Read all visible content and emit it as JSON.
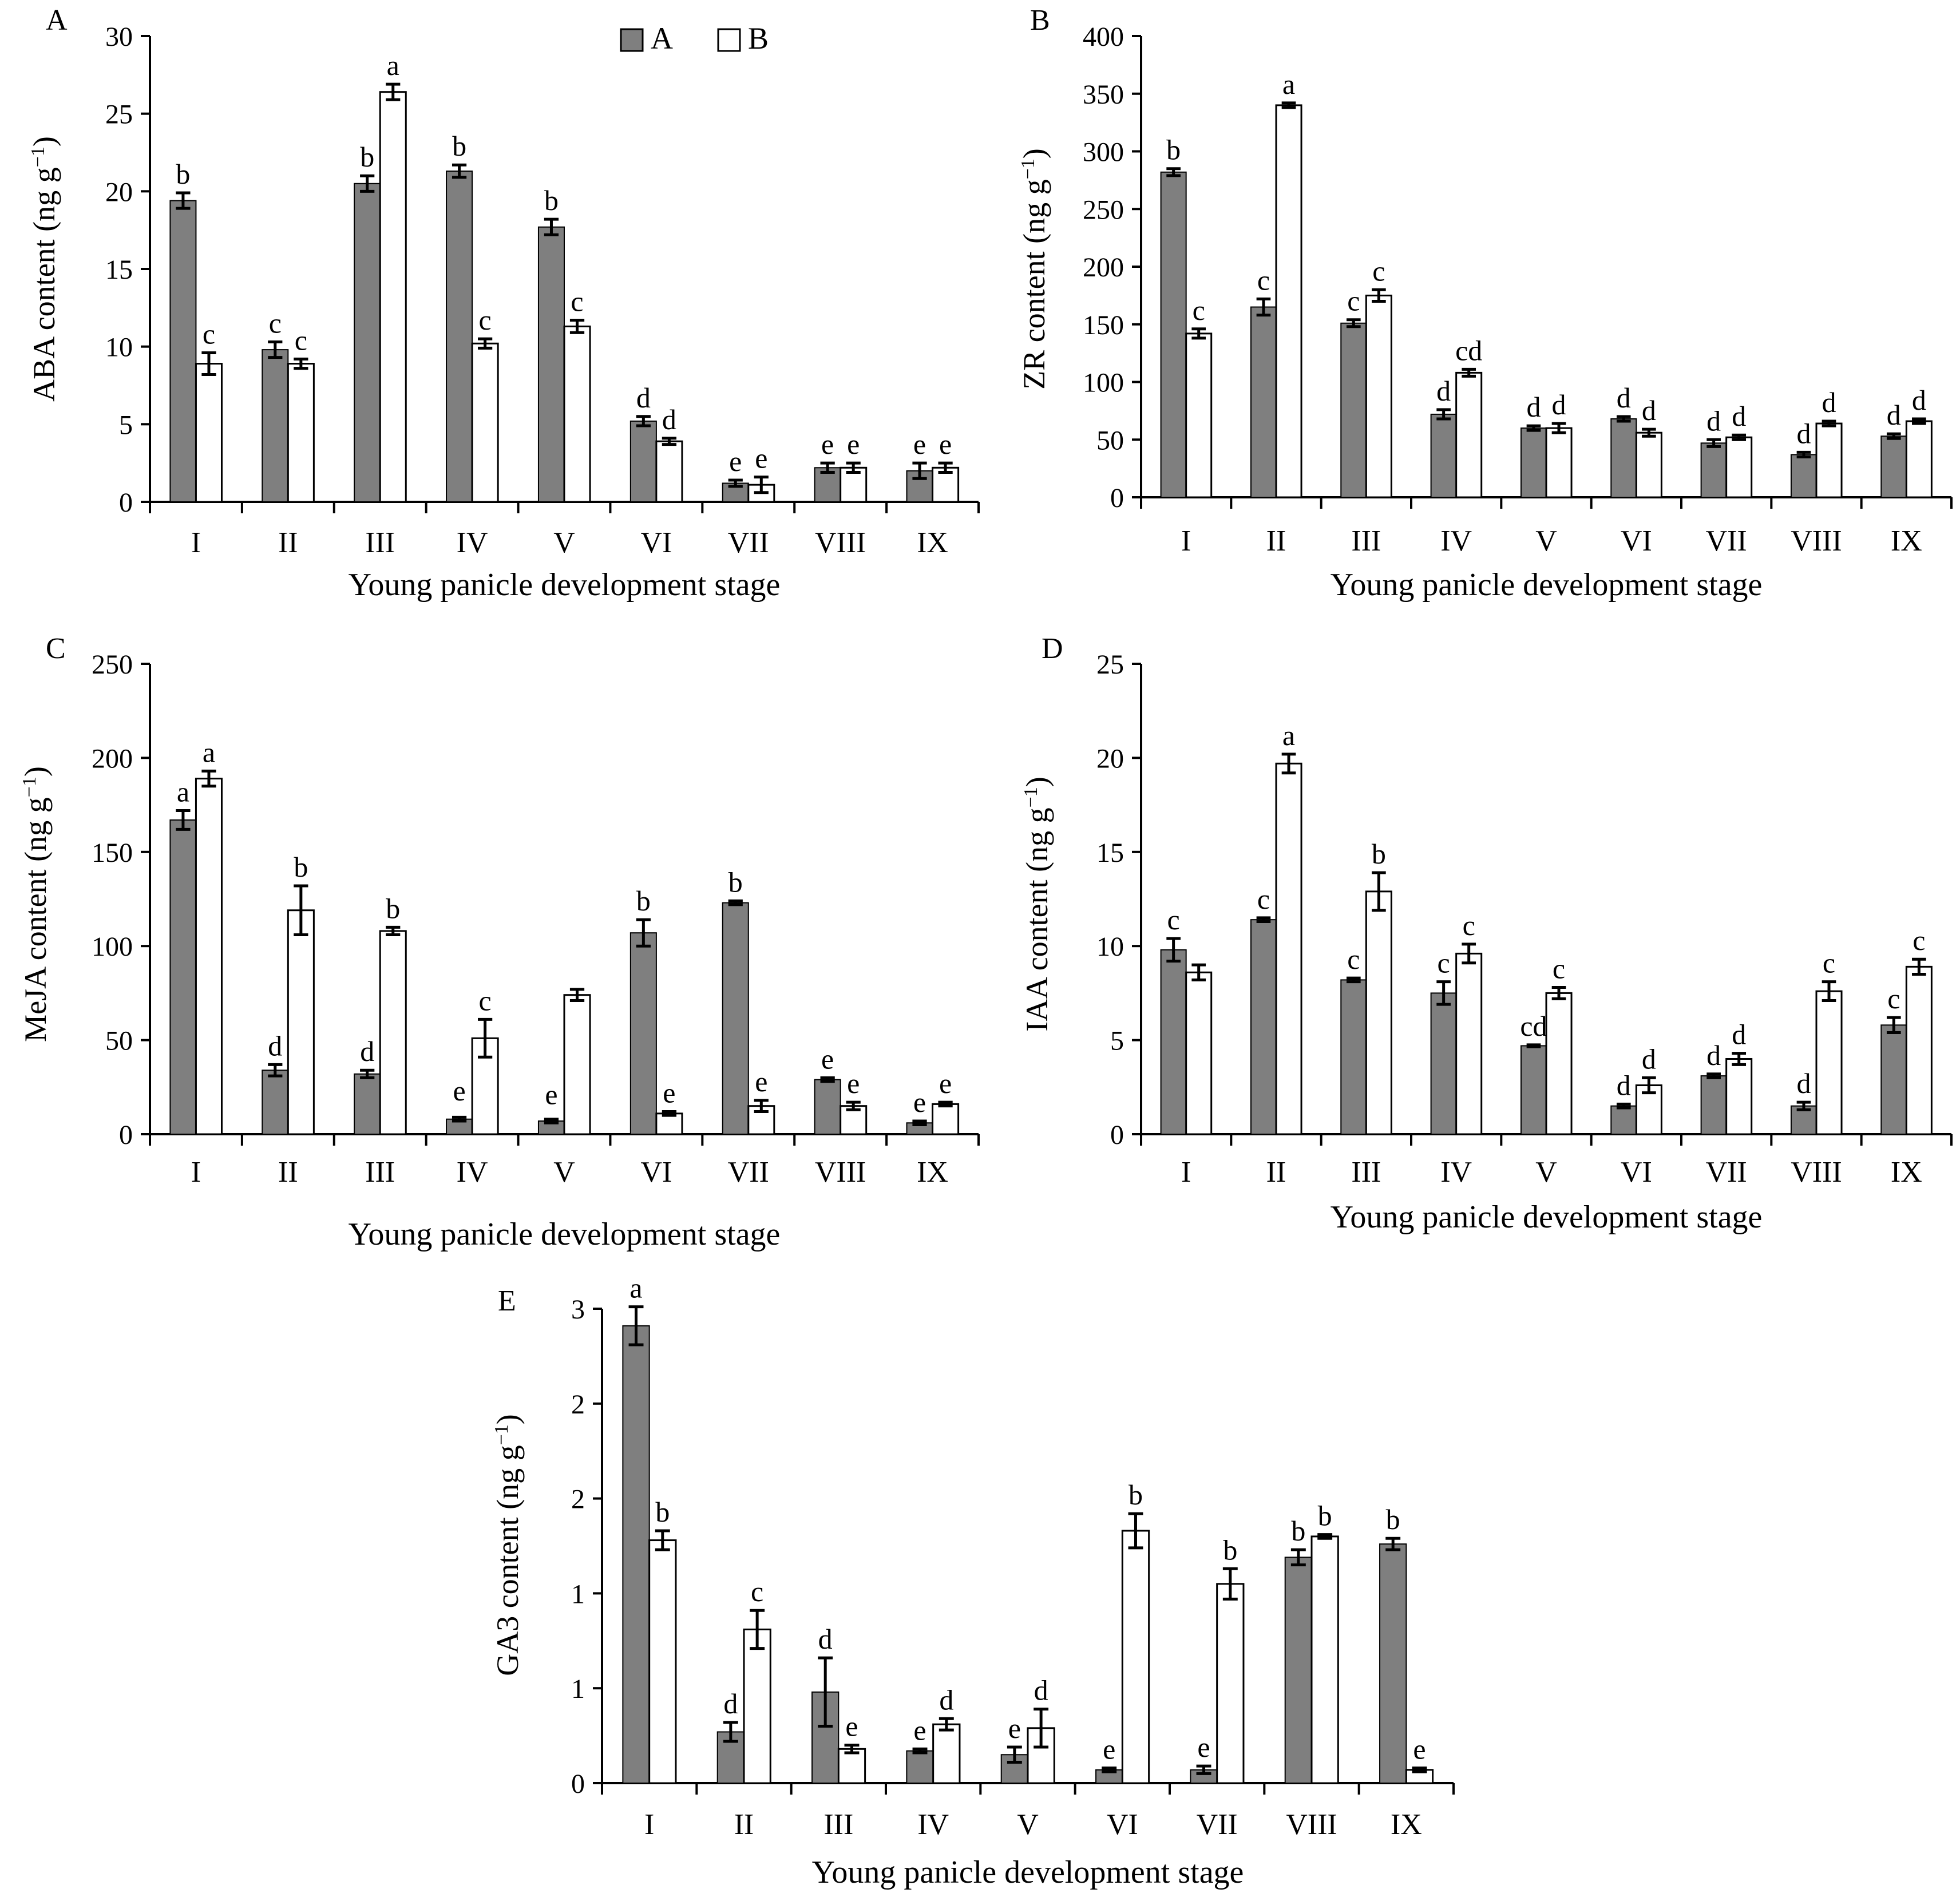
{
  "colors": {
    "series_A": "#7f7f7f",
    "series_B": "#ffffff",
    "stroke": "#000000"
  },
  "legend": {
    "position": "top",
    "entries": [
      {
        "label": "A",
        "color": "#7f7f7f"
      },
      {
        "label": "B",
        "color": "#ffffff"
      }
    ]
  },
  "chart_data": [
    {
      "type": "bar",
      "panel_label": "A",
      "xlabel": "Young panicle development stage",
      "ylabel_main": "ABA content (ng g",
      "ylabel_sup": "−1",
      "ylabel_close": ")",
      "ylim": [
        0,
        30
      ],
      "yticks": [
        "0",
        "5",
        "10",
        "15",
        "20",
        "25",
        "30"
      ],
      "categories": [
        "I",
        "II",
        "III",
        "IV",
        "V",
        "VI",
        "VII",
        "VIII",
        "IX"
      ],
      "series": [
        {
          "name": "A",
          "values": [
            19.4,
            9.8,
            20.5,
            21.3,
            17.7,
            5.2,
            1.2,
            2.2,
            2.0
          ],
          "errors": [
            0.5,
            0.5,
            0.5,
            0.4,
            0.5,
            0.3,
            0.2,
            0.3,
            0.5
          ],
          "letters": [
            "b",
            "c",
            "b",
            "b",
            "b",
            "d",
            "e",
            "e",
            "e"
          ]
        },
        {
          "name": "B",
          "values": [
            8.9,
            8.9,
            26.4,
            10.2,
            11.3,
            3.9,
            1.1,
            2.2,
            2.2
          ],
          "errors": [
            0.7,
            0.3,
            0.5,
            0.3,
            0.4,
            0.2,
            0.5,
            0.3,
            0.3
          ],
          "letters": [
            "c",
            "c",
            "a",
            "c",
            "c",
            "d",
            "e",
            "e",
            "e"
          ]
        }
      ]
    },
    {
      "type": "bar",
      "panel_label": "B",
      "xlabel": "Young panicle development stage",
      "ylabel_main": "ZR content (ng g",
      "ylabel_sup": "−1",
      "ylabel_close": ")",
      "ylim": [
        0,
        400
      ],
      "yticks": [
        "0",
        "50",
        "100",
        "150",
        "200",
        "250",
        "300",
        "350",
        "400"
      ],
      "categories": [
        "I",
        "II",
        "III",
        "IV",
        "V",
        "VI",
        "VII",
        "VIII",
        "IX"
      ],
      "series": [
        {
          "name": "A",
          "values": [
            282,
            165,
            151,
            72,
            60,
            68,
            47,
            37,
            53
          ],
          "errors": [
            3,
            7,
            3,
            4,
            2,
            2,
            3,
            2,
            2
          ],
          "letters": [
            "b",
            "c",
            "c",
            "d",
            "d",
            "d",
            "d",
            "d",
            "d"
          ]
        },
        {
          "name": "B",
          "values": [
            142,
            340,
            175,
            108,
            60,
            56,
            52,
            64,
            66
          ],
          "errors": [
            4,
            2,
            5,
            3,
            4,
            3,
            2,
            2,
            2
          ],
          "letters": [
            "c",
            "a",
            "c",
            "cd",
            "d",
            "d",
            "d",
            "d",
            "d"
          ]
        }
      ]
    },
    {
      "type": "bar",
      "panel_label": "C",
      "xlabel": "Young panicle development stage",
      "ylabel_main": "MeJA content (ng g",
      "ylabel_sup": "−1",
      "ylabel_close": ")",
      "ylim": [
        0,
        250
      ],
      "yticks": [
        "0",
        "50",
        "100",
        "150",
        "200",
        "250"
      ],
      "categories": [
        "I",
        "II",
        "III",
        "IV",
        "V",
        "VI",
        "VII",
        "VIII",
        "IX"
      ],
      "series": [
        {
          "name": "A",
          "values": [
            167,
            34,
            32,
            8,
            7,
            107,
            123,
            29,
            6
          ],
          "errors": [
            5,
            3,
            2,
            1,
            1,
            7,
            1,
            1,
            1
          ],
          "letters": [
            "a",
            "d",
            "d",
            "",
            "",
            "b",
            "b",
            "e",
            "e"
          ]
        },
        {
          "name": "B",
          "values": [
            189,
            119,
            108,
            51,
            74,
            11,
            15,
            15,
            16
          ],
          "errors": [
            4,
            13,
            2,
            10,
            3,
            1,
            3,
            2,
            1
          ],
          "letters": [
            "a",
            "b",
            "b",
            "c",
            "",
            "e",
            "e",
            "e",
            "e"
          ]
        }
      ],
      "extra_labels": [
        {
          "text": "e",
          "category": 3,
          "y": 18
        },
        {
          "text": "e",
          "category": 4,
          "y": 16
        }
      ]
    },
    {
      "type": "bar",
      "panel_label": "D",
      "xlabel": "Young panicle development stage",
      "ylabel_main": "IAA content (ng g",
      "ylabel_sup": "−1",
      "ylabel_close": ")",
      "ylim": [
        0,
        25
      ],
      "yticks": [
        "0",
        "5",
        "10",
        "15",
        "20",
        "25"
      ],
      "categories": [
        "I",
        "II",
        "III",
        "IV",
        "V",
        "VI",
        "VII",
        "VIII",
        "IX"
      ],
      "series": [
        {
          "name": "A",
          "values": [
            9.8,
            11.4,
            8.2,
            7.5,
            4.7,
            1.5,
            3.1,
            1.5,
            5.8
          ],
          "errors": [
            0.6,
            0.1,
            0.1,
            0.6,
            0.05,
            0.1,
            0.1,
            0.2,
            0.4
          ],
          "letters": [
            "c",
            "c",
            "c",
            "c",
            "cd",
            "d",
            "d",
            "d",
            "c"
          ]
        },
        {
          "name": "B",
          "values": [
            8.6,
            19.7,
            12.9,
            9.6,
            7.5,
            2.6,
            4.0,
            7.6,
            8.9
          ],
          "errors": [
            0.4,
            0.5,
            1.0,
            0.5,
            0.3,
            0.4,
            0.3,
            0.5,
            0.4
          ],
          "letters": [
            "",
            "a",
            "b",
            "c",
            "c",
            "d",
            "d",
            "c",
            "c"
          ]
        }
      ]
    },
    {
      "type": "bar",
      "panel_label": "E",
      "xlabel": "Young panicle development stage",
      "ylabel_main": "GA3 content (ng g",
      "ylabel_sup": "−1",
      "ylabel_close": ")",
      "ylim": [
        0,
        2.5
      ],
      "yticks": [
        "0",
        "1",
        "1",
        "2",
        "2",
        "3"
      ],
      "categories": [
        "I",
        "II",
        "III",
        "IV",
        "V",
        "VI",
        "VII",
        "VIII",
        "IX"
      ],
      "series": [
        {
          "name": "A",
          "values": [
            2.41,
            0.27,
            0.48,
            0.17,
            0.15,
            0.07,
            0.07,
            1.19,
            1.26
          ],
          "errors": [
            0.1,
            0.05,
            0.18,
            0.01,
            0.04,
            0.01,
            0.02,
            0.04,
            0.03
          ],
          "letters": [
            "a",
            "d",
            "d",
            "e",
            "e",
            "e",
            "e",
            "b",
            "b"
          ]
        },
        {
          "name": "B",
          "values": [
            1.28,
            0.81,
            0.18,
            0.31,
            0.29,
            1.33,
            1.05,
            1.3,
            0.07
          ],
          "errors": [
            0.05,
            0.1,
            0.02,
            0.03,
            0.1,
            0.09,
            0.08,
            0.01,
            0.01
          ],
          "letters": [
            "b",
            "c",
            "e",
            "d",
            "d",
            "b",
            "b",
            "b",
            "e"
          ]
        }
      ]
    }
  ]
}
